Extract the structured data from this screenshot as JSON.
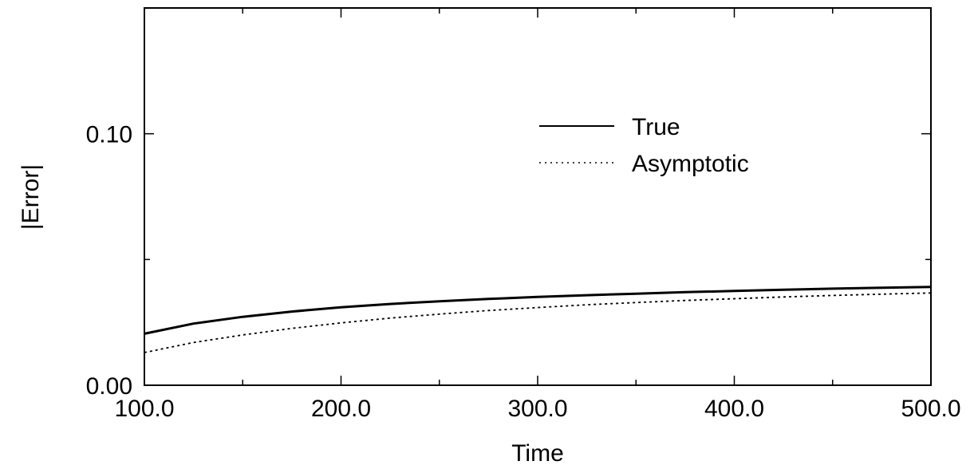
{
  "chart_data": {
    "type": "line",
    "title": "",
    "xlabel": "Time",
    "ylabel": "|Error|",
    "xlim": [
      100.0,
      500.0
    ],
    "ylim": [
      0.0,
      0.15
    ],
    "x_ticks": [
      100.0,
      200.0,
      300.0,
      400.0,
      500.0
    ],
    "x_tick_labels": [
      "100.0",
      "200.0",
      "300.0",
      "400.0",
      "500.0"
    ],
    "y_ticks": [
      0.0,
      0.1
    ],
    "y_tick_labels": [
      "0.00",
      "0.10"
    ],
    "grid": false,
    "legend_position": "top-right",
    "series": [
      {
        "name": "True",
        "style": "solid",
        "x": [
          100,
          125,
          150,
          175,
          200,
          225,
          250,
          275,
          300,
          325,
          350,
          375,
          400,
          425,
          450,
          475,
          500
        ],
        "values": [
          0.0205,
          0.0245,
          0.0272,
          0.0293,
          0.031,
          0.0323,
          0.0334,
          0.0343,
          0.0351,
          0.0358,
          0.0364,
          0.037,
          0.0375,
          0.038,
          0.0384,
          0.0388,
          0.0391
        ]
      },
      {
        "name": "Asymptotic",
        "style": "dotted",
        "x": [
          100,
          125,
          150,
          175,
          200,
          225,
          250,
          275,
          300,
          325,
          350,
          375,
          400,
          425,
          450,
          475,
          500
        ],
        "values": [
          0.013,
          0.017,
          0.02,
          0.0226,
          0.0248,
          0.0267,
          0.0283,
          0.0297,
          0.0309,
          0.032,
          0.0329,
          0.0337,
          0.0344,
          0.0351,
          0.0357,
          0.0362,
          0.0367
        ]
      }
    ]
  }
}
